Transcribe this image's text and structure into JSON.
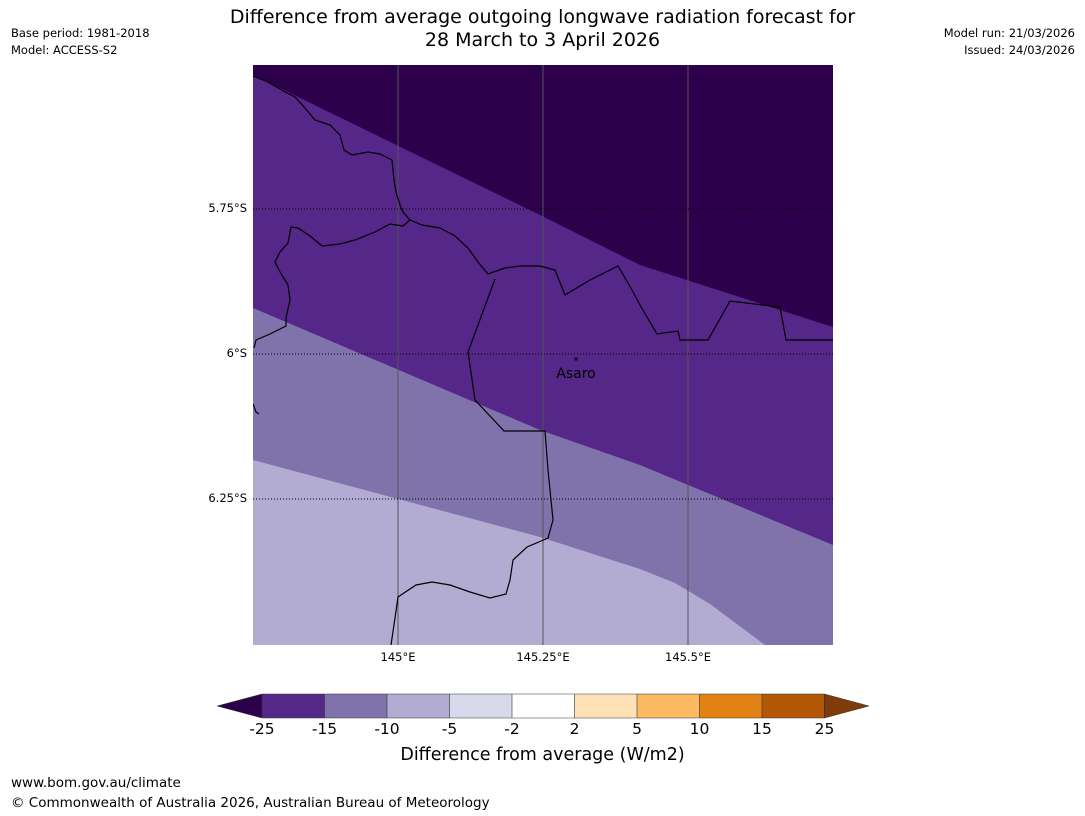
{
  "header": {
    "title_line1": "Difference from average outgoing longwave radiation forecast for",
    "title_line2": "28 March to 3 April 2026",
    "base_period": "Base period: 1981-2018",
    "model": "Model: ACCESS-S2",
    "model_run": "Model run: 21/03/2026",
    "issued": "Issued: 24/03/2026"
  },
  "map": {
    "lat_labels": [
      "5.75°S",
      "6°S",
      "6.25°S"
    ],
    "lon_labels": [
      "145°E",
      "145.25°E",
      "145.5°E"
    ],
    "place_label": "Asaro",
    "colors": {
      "lt_minus25": "#2d004b",
      "minus25_to_minus15": "#542788",
      "minus15_to_minus10": "#8073ac",
      "minus10_to_minus5": "#b2abd2",
      "minus5_to_minus2": "#d8daeb",
      "minus2_to_2": "#ffffff",
      "2_to_5": "#fee0b6",
      "5_to_10": "#fdb863",
      "10_to_15": "#e08214",
      "15_to_25": "#b35806",
      "gt_25": "#7f3b08"
    }
  },
  "colorbar": {
    "ticks": [
      "-25",
      "-15",
      "-10",
      "-5",
      "-2",
      "2",
      "5",
      "10",
      "15",
      "25"
    ],
    "title": "Difference from average (W/m2)"
  },
  "footer": {
    "url": "www.bom.gov.au/climate",
    "copyright": "© Commonwealth of Australia 2026, Australian Bureau of Meteorology"
  }
}
